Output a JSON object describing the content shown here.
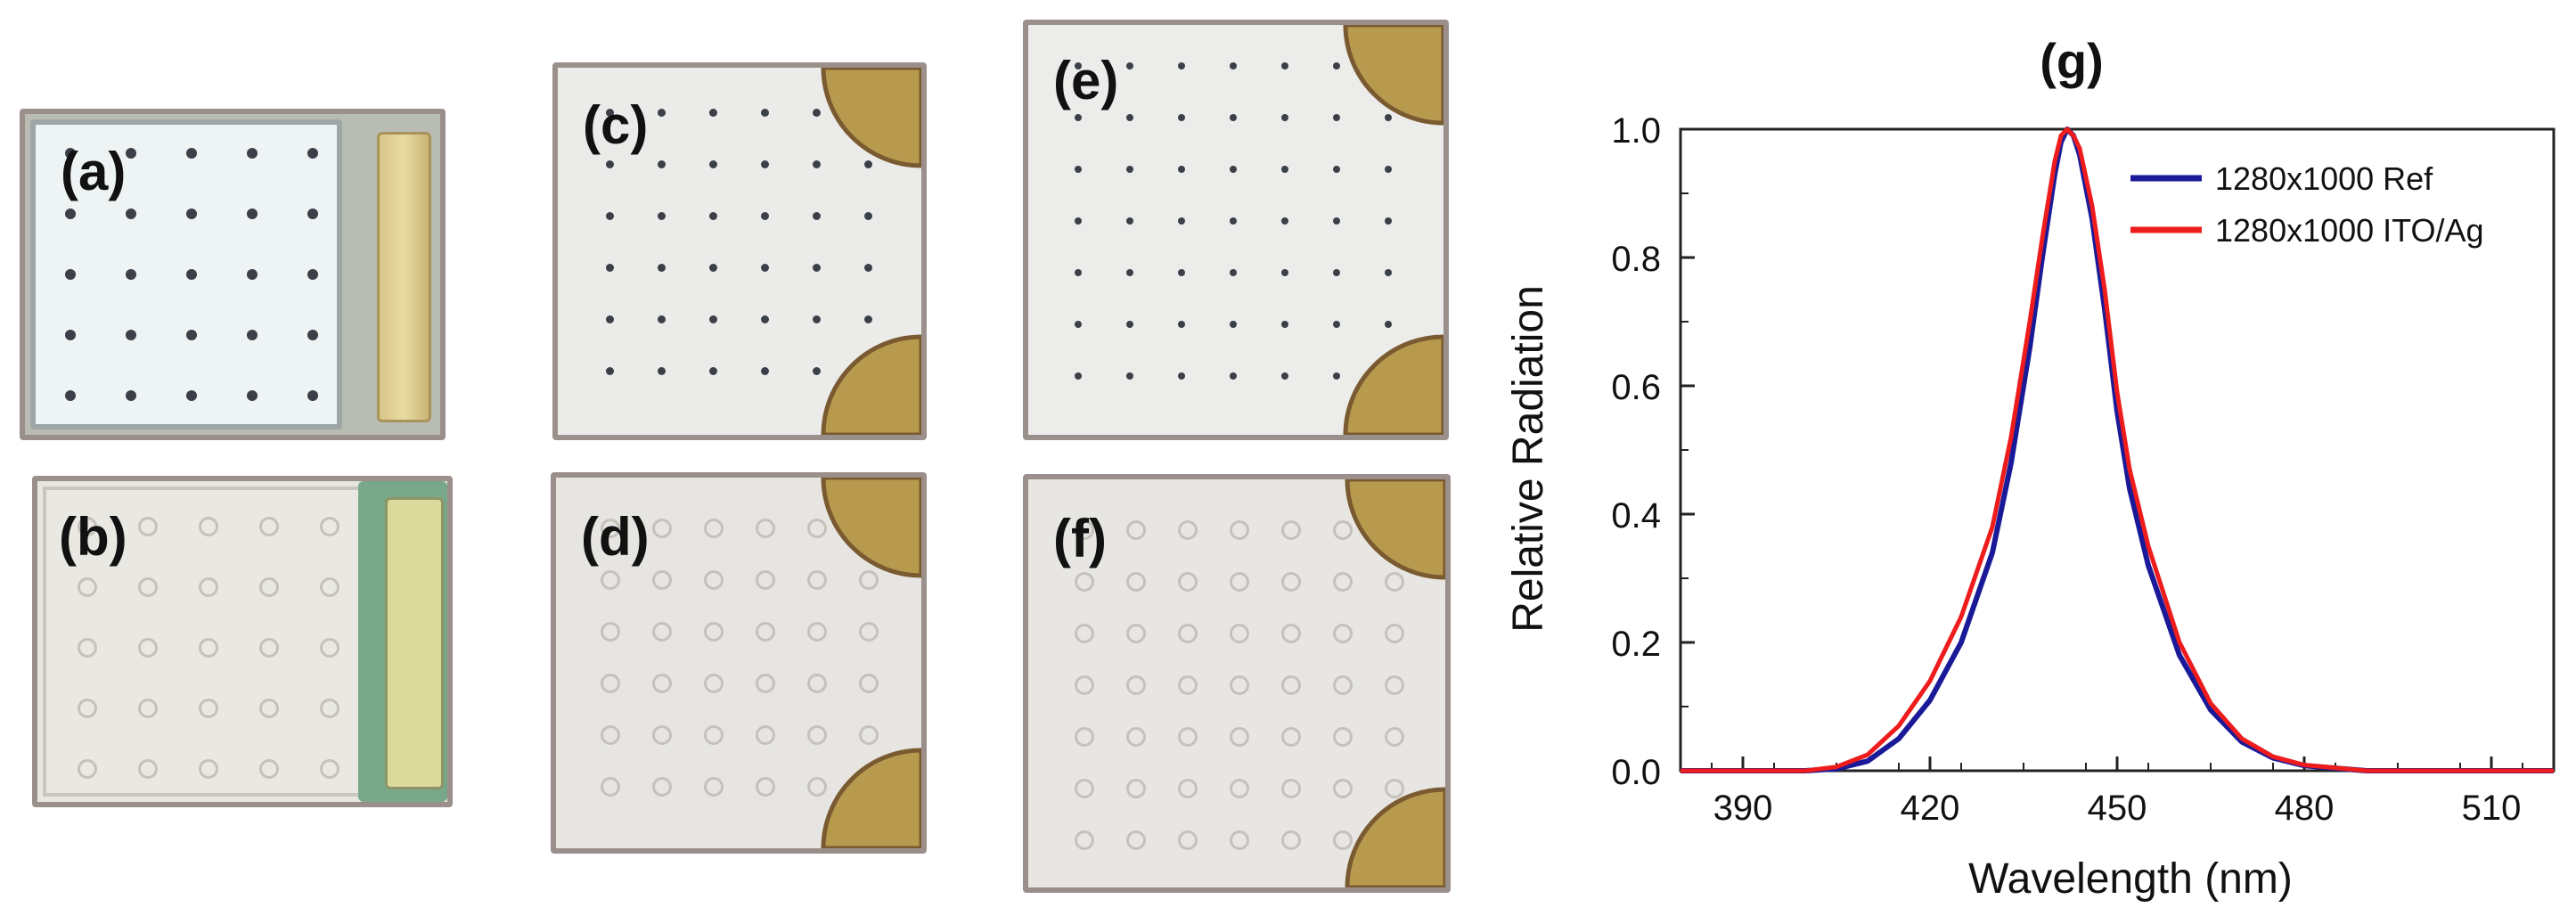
{
  "panels": [
    {
      "id": "a",
      "label": "(a)"
    },
    {
      "id": "b",
      "label": "(b)"
    },
    {
      "id": "c",
      "label": "(c)"
    },
    {
      "id": "d",
      "label": "(d)"
    },
    {
      "id": "e",
      "label": "(e)"
    },
    {
      "id": "f",
      "label": "(f)"
    }
  ],
  "chart_data": {
    "type": "line",
    "title": "(g)",
    "xlabel": "Wavelength (nm)",
    "ylabel": "Relative Radiation",
    "xlim": [
      380,
      520
    ],
    "ylim": [
      0,
      1.0
    ],
    "xticks": [
      390,
      420,
      450,
      480,
      510
    ],
    "yticks": [
      0.0,
      0.2,
      0.4,
      0.6,
      0.8,
      1.0
    ],
    "ytick_labels": [
      "0.0",
      "0.2",
      "0.4",
      "0.6",
      "0.8",
      "1.0"
    ],
    "legend_position": "top-right",
    "series": [
      {
        "name": "1280x1000 Ref",
        "color": "#1a1a99",
        "x": [
          380,
          400,
          405,
          410,
          415,
          420,
          425,
          430,
          433,
          436,
          438,
          440,
          441,
          442,
          443,
          444,
          446,
          448,
          450,
          452,
          455,
          460,
          465,
          470,
          475,
          480,
          490,
          500,
          520
        ],
        "y": [
          0.0,
          0.0,
          0.003,
          0.015,
          0.05,
          0.11,
          0.2,
          0.34,
          0.48,
          0.66,
          0.8,
          0.93,
          0.98,
          1.0,
          0.99,
          0.96,
          0.86,
          0.72,
          0.56,
          0.44,
          0.32,
          0.18,
          0.095,
          0.045,
          0.02,
          0.008,
          0.0,
          0.0,
          0.0
        ]
      },
      {
        "name": "1280x1000 ITO/Ag",
        "color": "#ee1c1c",
        "x": [
          380,
          400,
          405,
          410,
          415,
          420,
          425,
          430,
          433,
          436,
          438,
          440,
          441,
          442,
          443,
          444,
          446,
          448,
          450,
          452,
          455,
          460,
          465,
          470,
          475,
          480,
          490,
          500,
          520
        ],
        "y": [
          0.0,
          0.0,
          0.006,
          0.025,
          0.07,
          0.14,
          0.24,
          0.38,
          0.52,
          0.7,
          0.83,
          0.95,
          0.99,
          1.0,
          0.99,
          0.97,
          0.88,
          0.75,
          0.59,
          0.47,
          0.35,
          0.2,
          0.105,
          0.05,
          0.022,
          0.009,
          0.0,
          0.0,
          0.0
        ]
      }
    ]
  }
}
